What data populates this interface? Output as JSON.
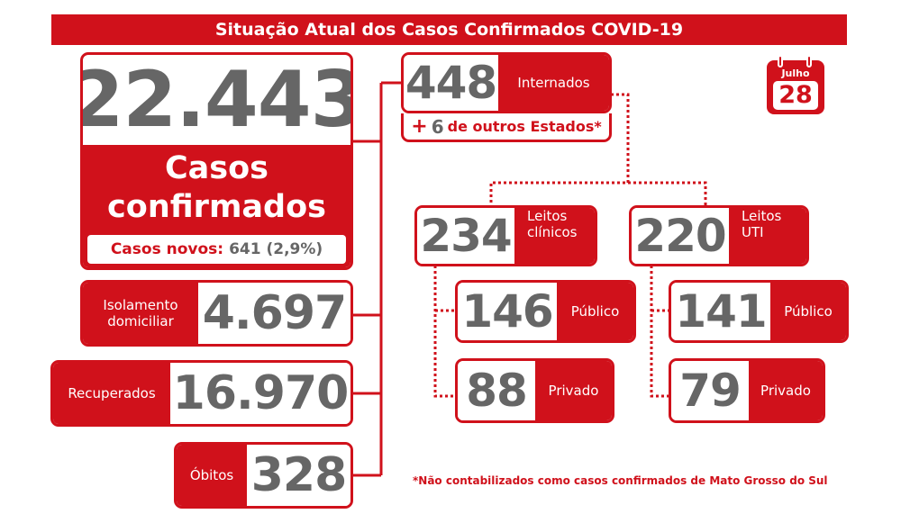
{
  "title": "Situação Atual dos Casos Confirmados COVID-19",
  "calendar": {
    "month": "Julho",
    "day": "28"
  },
  "confirmed": {
    "total": "22.443",
    "label_line1": "Casos",
    "label_line2": "confirmados",
    "new_label": "Casos novos:",
    "new_value": "641 (2,9%)"
  },
  "isolation": {
    "label_line1": "Isolamento",
    "label_line2": "domiciliar",
    "value": "4.697"
  },
  "recovered": {
    "label": "Recuperados",
    "value": "16.970"
  },
  "deaths": {
    "label": "Óbitos",
    "value": "328"
  },
  "hospitalized": {
    "value": "448",
    "label": "Internados",
    "other_states_plus": "+",
    "other_states_value": "6",
    "other_states_label": "de outros Estados*"
  },
  "clinical": {
    "value": "234",
    "label_line1": "Leitos",
    "label_line2": "clínicos",
    "public_value": "146",
    "public_label": "Público",
    "private_value": "88",
    "private_label": "Privado"
  },
  "icu": {
    "value": "220",
    "label_line1": "Leitos",
    "label_line2": "UTI",
    "public_value": "141",
    "public_label": "Público",
    "private_value": "79",
    "private_label": "Privado"
  },
  "footnote": "*Não contabilizados como casos confirmados de Mato Grosso do Sul",
  "colors": {
    "accent": "#d0111b",
    "number": "#666666"
  }
}
